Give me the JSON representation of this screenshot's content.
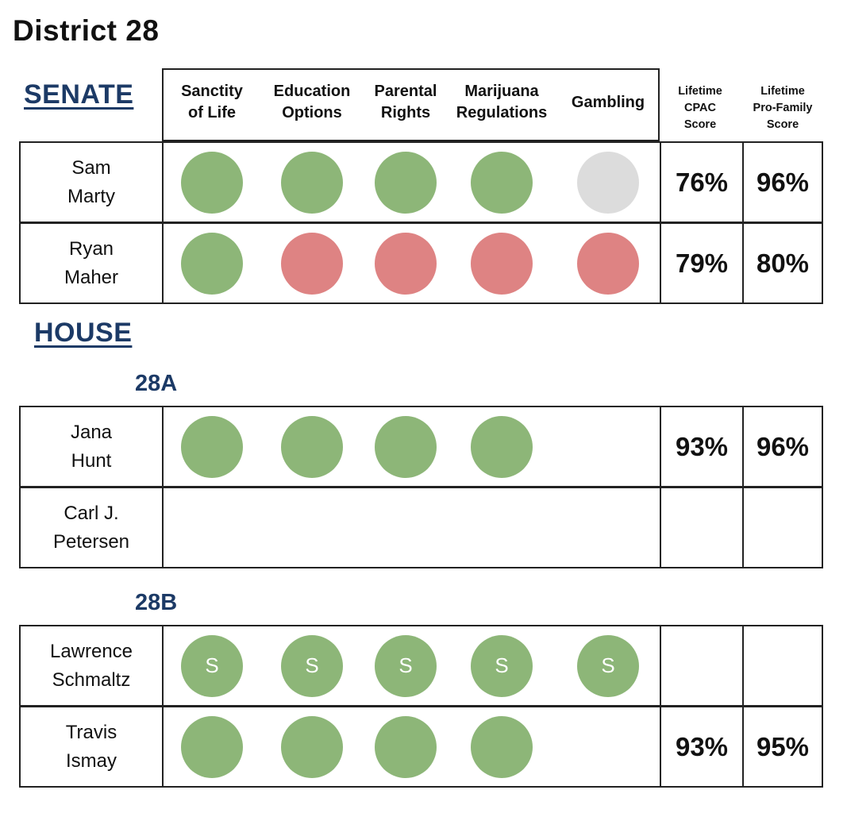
{
  "title": "District 28",
  "senate": {
    "heading": "SENATE",
    "columns": [
      [
        "Sanctity",
        "of Life"
      ],
      [
        "Education",
        "Options"
      ],
      [
        "Parental",
        "Rights"
      ],
      [
        "Marijuana",
        "Regulations"
      ],
      [
        "Gambling"
      ]
    ],
    "score_headers": [
      [
        "Lifetime",
        "CPAC",
        "Score"
      ],
      [
        "Lifetime",
        "Pro-Family",
        "Score"
      ]
    ],
    "candidates": [
      {
        "name": [
          "Sam",
          "Marty"
        ],
        "positions": [
          "green",
          "green",
          "green",
          "green",
          "gray"
        ],
        "cpac": "76%",
        "pro_family": "96%"
      },
      {
        "name": [
          "Ryan",
          "Maher"
        ],
        "positions": [
          "green",
          "red",
          "red",
          "red",
          "red"
        ],
        "cpac": "79%",
        "pro_family": "80%"
      }
    ]
  },
  "house": {
    "heading": "HOUSE",
    "districts": [
      {
        "label": "28A",
        "candidates": [
          {
            "name": [
              "Jana",
              "Hunt"
            ],
            "positions": [
              "green",
              "green",
              "green",
              "green"
            ],
            "cpac": "93%",
            "pro_family": "96%"
          },
          {
            "name": [
              "Carl J.",
              "Petersen"
            ],
            "positions": [],
            "cpac": "",
            "pro_family": ""
          }
        ]
      },
      {
        "label": "28B",
        "candidates": [
          {
            "name": [
              "Lawrence",
              "Schmaltz"
            ],
            "positions": [
              "green",
              "green",
              "green",
              "green",
              "green"
            ],
            "dot_label": "S",
            "cpac": "",
            "pro_family": ""
          },
          {
            "name": [
              "Travis",
              "Ismay"
            ],
            "positions": [
              "green",
              "green",
              "green",
              "green"
            ],
            "cpac": "93%",
            "pro_family": "95%"
          }
        ]
      }
    ]
  },
  "colors": {
    "green": "#8db678",
    "red": "#de8383",
    "gray": "#dcdcdc",
    "heading": "#1c3a66"
  }
}
